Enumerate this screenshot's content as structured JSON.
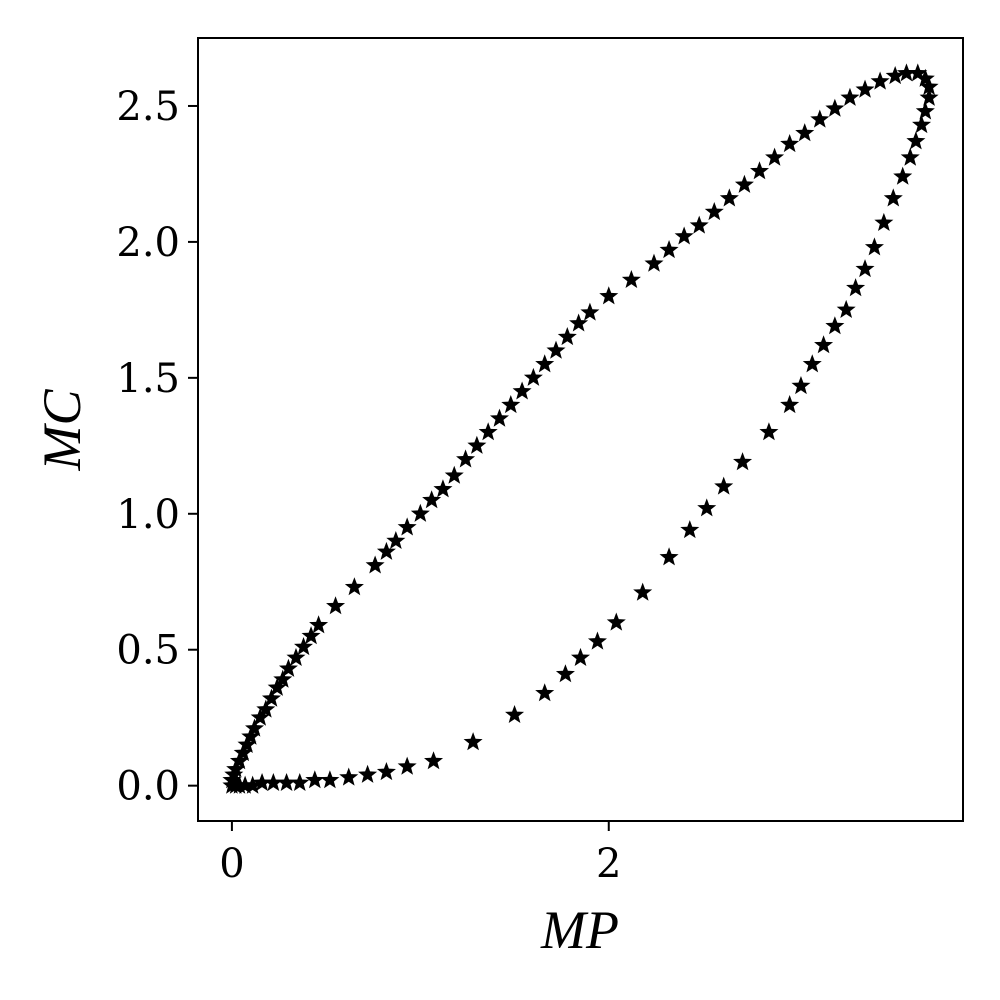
{
  "chart_data": {
    "type": "scatter",
    "xlabel": "MP",
    "ylabel": "MC",
    "marker": "star",
    "marker_color": "#000000",
    "xlim": [
      -0.18,
      3.88
    ],
    "ylim": [
      -0.13,
      2.75
    ],
    "x_ticks": [
      {
        "value": 0,
        "label": "0"
      },
      {
        "value": 2,
        "label": "2"
      }
    ],
    "y_ticks": [
      {
        "value": 0.0,
        "label": "0.0"
      },
      {
        "value": 0.5,
        "label": "0.5"
      },
      {
        "value": 1.0,
        "label": "1.0"
      },
      {
        "value": 1.5,
        "label": "1.5"
      },
      {
        "value": 2.0,
        "label": "2.0"
      },
      {
        "value": 2.5,
        "label": "2.5"
      }
    ],
    "grid": false,
    "series": [
      {
        "values": [
          {
            "x": 0.0,
            "y": 0.02
          },
          {
            "x": 0.01,
            "y": 0.04
          },
          {
            "x": 0.02,
            "y": 0.06
          },
          {
            "x": 0.04,
            "y": 0.09
          },
          {
            "x": 0.06,
            "y": 0.12
          },
          {
            "x": 0.08,
            "y": 0.15
          },
          {
            "x": 0.1,
            "y": 0.18
          },
          {
            "x": 0.12,
            "y": 0.21
          },
          {
            "x": 0.15,
            "y": 0.25
          },
          {
            "x": 0.18,
            "y": 0.28
          },
          {
            "x": 0.21,
            "y": 0.32
          },
          {
            "x": 0.24,
            "y": 0.36
          },
          {
            "x": 0.27,
            "y": 0.39
          },
          {
            "x": 0.3,
            "y": 0.43
          },
          {
            "x": 0.34,
            "y": 0.47
          },
          {
            "x": 0.38,
            "y": 0.51
          },
          {
            "x": 0.42,
            "y": 0.55
          },
          {
            "x": 0.46,
            "y": 0.59
          },
          {
            "x": 0.55,
            "y": 0.66
          },
          {
            "x": 0.65,
            "y": 0.73
          },
          {
            "x": 0.76,
            "y": 0.81
          },
          {
            "x": 0.82,
            "y": 0.86
          },
          {
            "x": 0.87,
            "y": 0.9
          },
          {
            "x": 0.93,
            "y": 0.95
          },
          {
            "x": 1.0,
            "y": 1.0
          },
          {
            "x": 1.06,
            "y": 1.05
          },
          {
            "x": 1.12,
            "y": 1.09
          },
          {
            "x": 1.18,
            "y": 1.14
          },
          {
            "x": 1.24,
            "y": 1.2
          },
          {
            "x": 1.3,
            "y": 1.25
          },
          {
            "x": 1.36,
            "y": 1.3
          },
          {
            "x": 1.42,
            "y": 1.35
          },
          {
            "x": 1.48,
            "y": 1.4
          },
          {
            "x": 1.54,
            "y": 1.45
          },
          {
            "x": 1.6,
            "y": 1.5
          },
          {
            "x": 1.66,
            "y": 1.55
          },
          {
            "x": 1.72,
            "y": 1.6
          },
          {
            "x": 1.78,
            "y": 1.65
          },
          {
            "x": 1.84,
            "y": 1.7
          },
          {
            "x": 1.9,
            "y": 1.74
          },
          {
            "x": 2.0,
            "y": 1.8
          },
          {
            "x": 2.12,
            "y": 1.86
          },
          {
            "x": 2.24,
            "y": 1.92
          },
          {
            "x": 2.32,
            "y": 1.97
          },
          {
            "x": 2.4,
            "y": 2.02
          },
          {
            "x": 2.48,
            "y": 2.06
          },
          {
            "x": 2.56,
            "y": 2.11
          },
          {
            "x": 2.64,
            "y": 2.16
          },
          {
            "x": 2.72,
            "y": 2.21
          },
          {
            "x": 2.8,
            "y": 2.26
          },
          {
            "x": 2.88,
            "y": 2.31
          },
          {
            "x": 2.96,
            "y": 2.36
          },
          {
            "x": 3.04,
            "y": 2.4
          },
          {
            "x": 3.12,
            "y": 2.45
          },
          {
            "x": 3.2,
            "y": 2.49
          },
          {
            "x": 3.28,
            "y": 2.53
          },
          {
            "x": 3.36,
            "y": 2.56
          },
          {
            "x": 3.44,
            "y": 2.59
          },
          {
            "x": 3.52,
            "y": 2.61
          },
          {
            "x": 3.58,
            "y": 2.62
          },
          {
            "x": 3.64,
            "y": 2.62
          },
          {
            "x": 3.68,
            "y": 2.6
          },
          {
            "x": 3.7,
            "y": 2.57
          },
          {
            "x": 3.7,
            "y": 2.53
          },
          {
            "x": 3.68,
            "y": 2.48
          },
          {
            "x": 3.66,
            "y": 2.43
          },
          {
            "x": 3.63,
            "y": 2.37
          },
          {
            "x": 3.6,
            "y": 2.31
          },
          {
            "x": 3.56,
            "y": 2.24
          },
          {
            "x": 3.51,
            "y": 2.16
          },
          {
            "x": 3.46,
            "y": 2.07
          },
          {
            "x": 3.41,
            "y": 1.98
          },
          {
            "x": 3.36,
            "y": 1.9
          },
          {
            "x": 3.31,
            "y": 1.83
          },
          {
            "x": 3.26,
            "y": 1.75
          },
          {
            "x": 3.2,
            "y": 1.69
          },
          {
            "x": 3.14,
            "y": 1.62
          },
          {
            "x": 3.08,
            "y": 1.55
          },
          {
            "x": 3.02,
            "y": 1.47
          },
          {
            "x": 2.96,
            "y": 1.4
          },
          {
            "x": 2.85,
            "y": 1.3
          },
          {
            "x": 2.71,
            "y": 1.19
          },
          {
            "x": 2.61,
            "y": 1.1
          },
          {
            "x": 2.52,
            "y": 1.02
          },
          {
            "x": 2.43,
            "y": 0.94
          },
          {
            "x": 2.32,
            "y": 0.84
          },
          {
            "x": 2.18,
            "y": 0.71
          },
          {
            "x": 2.04,
            "y": 0.6
          },
          {
            "x": 1.94,
            "y": 0.53
          },
          {
            "x": 1.85,
            "y": 0.47
          },
          {
            "x": 1.77,
            "y": 0.41
          },
          {
            "x": 1.66,
            "y": 0.34
          },
          {
            "x": 1.5,
            "y": 0.26
          },
          {
            "x": 1.28,
            "y": 0.16
          },
          {
            "x": 1.07,
            "y": 0.09
          },
          {
            "x": 0.93,
            "y": 0.07
          },
          {
            "x": 0.82,
            "y": 0.05
          },
          {
            "x": 0.72,
            "y": 0.04
          },
          {
            "x": 0.62,
            "y": 0.03
          },
          {
            "x": 0.52,
            "y": 0.02
          },
          {
            "x": 0.44,
            "y": 0.02
          },
          {
            "x": 0.36,
            "y": 0.01
          },
          {
            "x": 0.29,
            "y": 0.01
          },
          {
            "x": 0.22,
            "y": 0.01
          },
          {
            "x": 0.16,
            "y": 0.01
          },
          {
            "x": 0.11,
            "y": 0.0
          },
          {
            "x": 0.07,
            "y": 0.0
          },
          {
            "x": 0.04,
            "y": 0.0
          },
          {
            "x": 0.02,
            "y": 0.0
          },
          {
            "x": 0.0,
            "y": 0.0
          }
        ]
      }
    ]
  }
}
